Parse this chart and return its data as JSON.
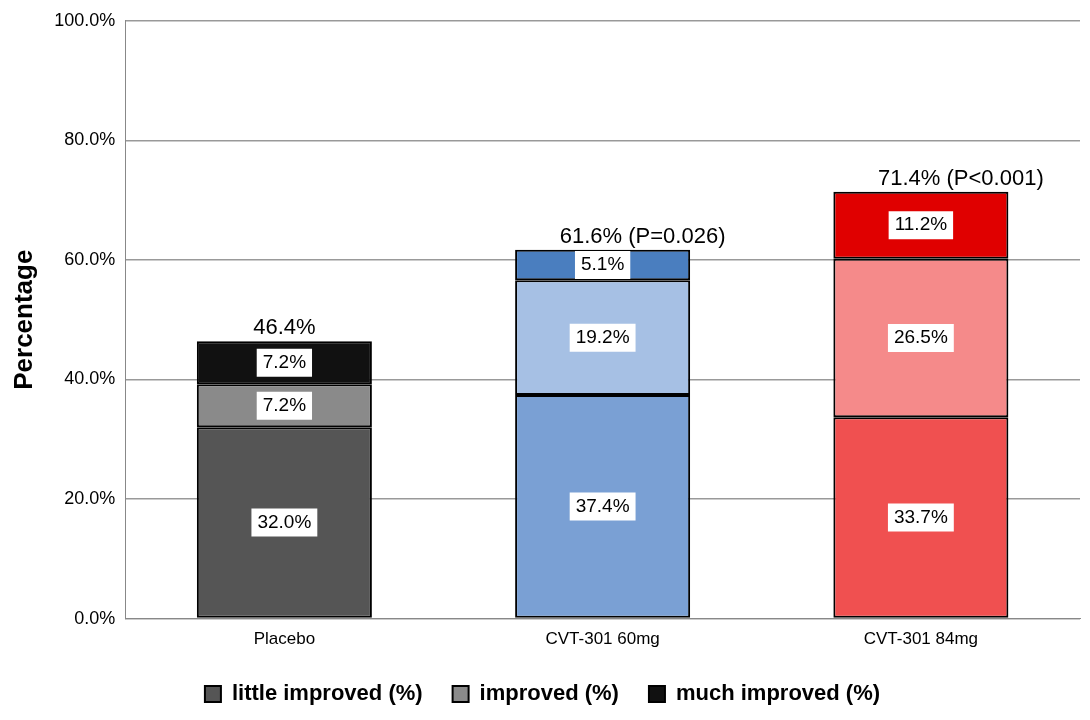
{
  "chart_data": {
    "type": "bar",
    "stacked": true,
    "ylabel": "Percentage",
    "categories": [
      "Placebo",
      "CVT-301 60mg",
      "CVT-301 84mg"
    ],
    "series": [
      {
        "name": "little improved (%)",
        "colors": [
          "#555555",
          "#7aa0d4",
          "#f05050"
        ],
        "values": [
          32.0,
          37.4,
          33.7
        ],
        "value_labels": [
          "32.0%",
          "37.4%",
          "33.7%"
        ]
      },
      {
        "name": "improved (%)",
        "colors": [
          "#8a8a8a",
          "#a6c0e4",
          "#f58a8a"
        ],
        "values": [
          7.2,
          19.2,
          26.5
        ],
        "value_labels": [
          "7.2%",
          "19.2%",
          "26.5%"
        ]
      },
      {
        "name": "much improved (%)",
        "colors": [
          "#111111",
          "#4a7ebf",
          "#e00000"
        ],
        "values": [
          7.2,
          5.1,
          11.2
        ],
        "value_labels": [
          "7.2%",
          "5.1%",
          "11.2%"
        ]
      }
    ],
    "totals": [
      "46.4%",
      "61.6% (P=0.026)",
      "71.4% (P<0.001)"
    ],
    "ylim": [
      0,
      100
    ],
    "yticks": [
      {
        "value": 0,
        "label": "0.0%"
      },
      {
        "value": 20,
        "label": "20.0%"
      },
      {
        "value": 40,
        "label": "40.0%"
      },
      {
        "value": 60,
        "label": "60.0%"
      },
      {
        "value": 80,
        "label": "80.0%"
      },
      {
        "value": 100,
        "label": "100.0%"
      }
    ],
    "grid": "y",
    "legend": "bottom"
  }
}
